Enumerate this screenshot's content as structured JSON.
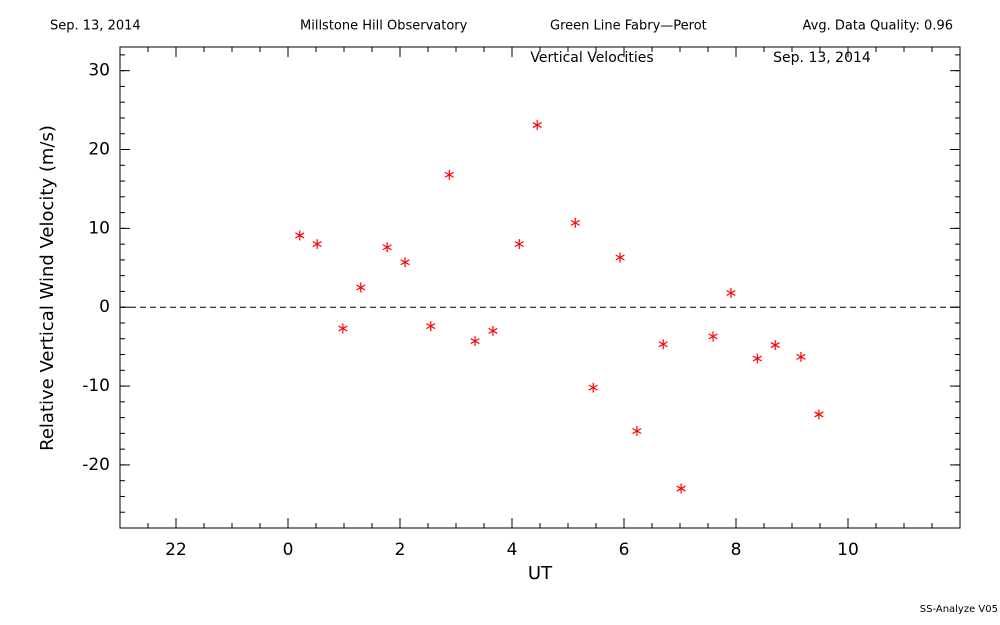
{
  "chart_data": {
    "type": "scatter",
    "header": [
      "Sep. 13, 2014",
      "Millstone Hill Observatory",
      "Green Line Fabry—Perot",
      "Avg. Data Quality: 0.96"
    ],
    "title": "Vertical Velocities",
    "subtitle": "Sep. 13, 2014",
    "x_label": "UT",
    "y_label": "Relative Vertical Wind Velocity (m/s)",
    "footer": "SS-Analyze V05",
    "color": "#ff0000",
    "marker": "asterisk",
    "x": [
      0.21,
      0.52,
      0.98,
      1.3,
      1.77,
      2.09,
      2.55,
      2.88,
      3.34,
      3.66,
      4.13,
      4.45,
      5.13,
      5.45,
      5.93,
      6.23,
      6.7,
      7.02,
      7.59,
      7.91,
      8.38,
      8.7,
      9.16,
      9.48
    ],
    "values": [
      9.1,
      8.0,
      -2.7,
      2.5,
      7.6,
      5.7,
      -2.4,
      16.8,
      -4.3,
      -3.0,
      8.0,
      23.1,
      10.7,
      -10.2,
      6.3,
      -15.7,
      -4.7,
      -23.0,
      -3.7,
      1.8,
      -6.5,
      -4.8,
      -6.3,
      -13.6
    ],
    "xlim": [
      -3,
      12
    ],
    "xticks": [
      {
        "value": -2,
        "label": "22"
      },
      0,
      2,
      4,
      6,
      8,
      10
    ],
    "ylim": [
      -28,
      33
    ],
    "yticks": [
      -20,
      -10,
      0,
      10,
      20,
      30
    ],
    "reference_lines": [
      {
        "y": 0,
        "dashed": true
      }
    ]
  }
}
